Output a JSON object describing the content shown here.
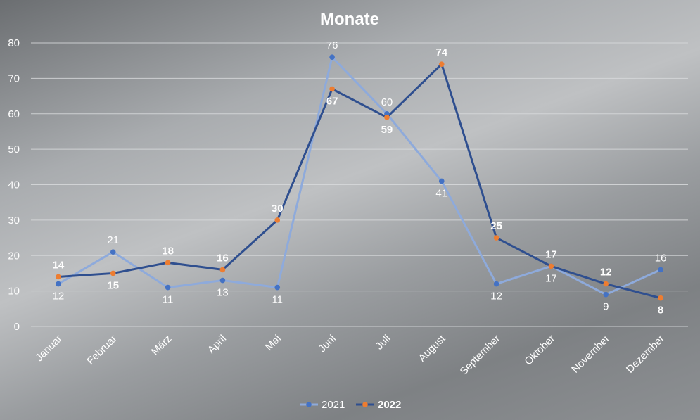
{
  "chart_data": {
    "type": "line",
    "title": "Monate",
    "categories": [
      "Januar",
      "Februar",
      "März",
      "April",
      "Mai",
      "Juni",
      "Juli",
      "August",
      "September",
      "Oktober",
      "November",
      "Dezember"
    ],
    "ylim": [
      0,
      80
    ],
    "yticks": [
      "0",
      "10",
      "20",
      "30",
      "40",
      "50",
      "60",
      "70",
      "80"
    ],
    "grid": true,
    "legend_position": "bottom",
    "series": [
      {
        "name": "2021",
        "values": [
          12,
          21,
          11,
          13,
          11,
          76,
          60,
          41,
          12,
          17,
          9,
          16
        ],
        "line_color": "#8eaadb",
        "marker_color": "#4472c4"
      },
      {
        "name": "2022",
        "values": [
          14,
          15,
          18,
          16,
          30,
          67,
          59,
          74,
          25,
          17,
          12,
          8
        ],
        "line_color": "#2f4f8f",
        "marker_color": "#ed7d31"
      }
    ]
  }
}
